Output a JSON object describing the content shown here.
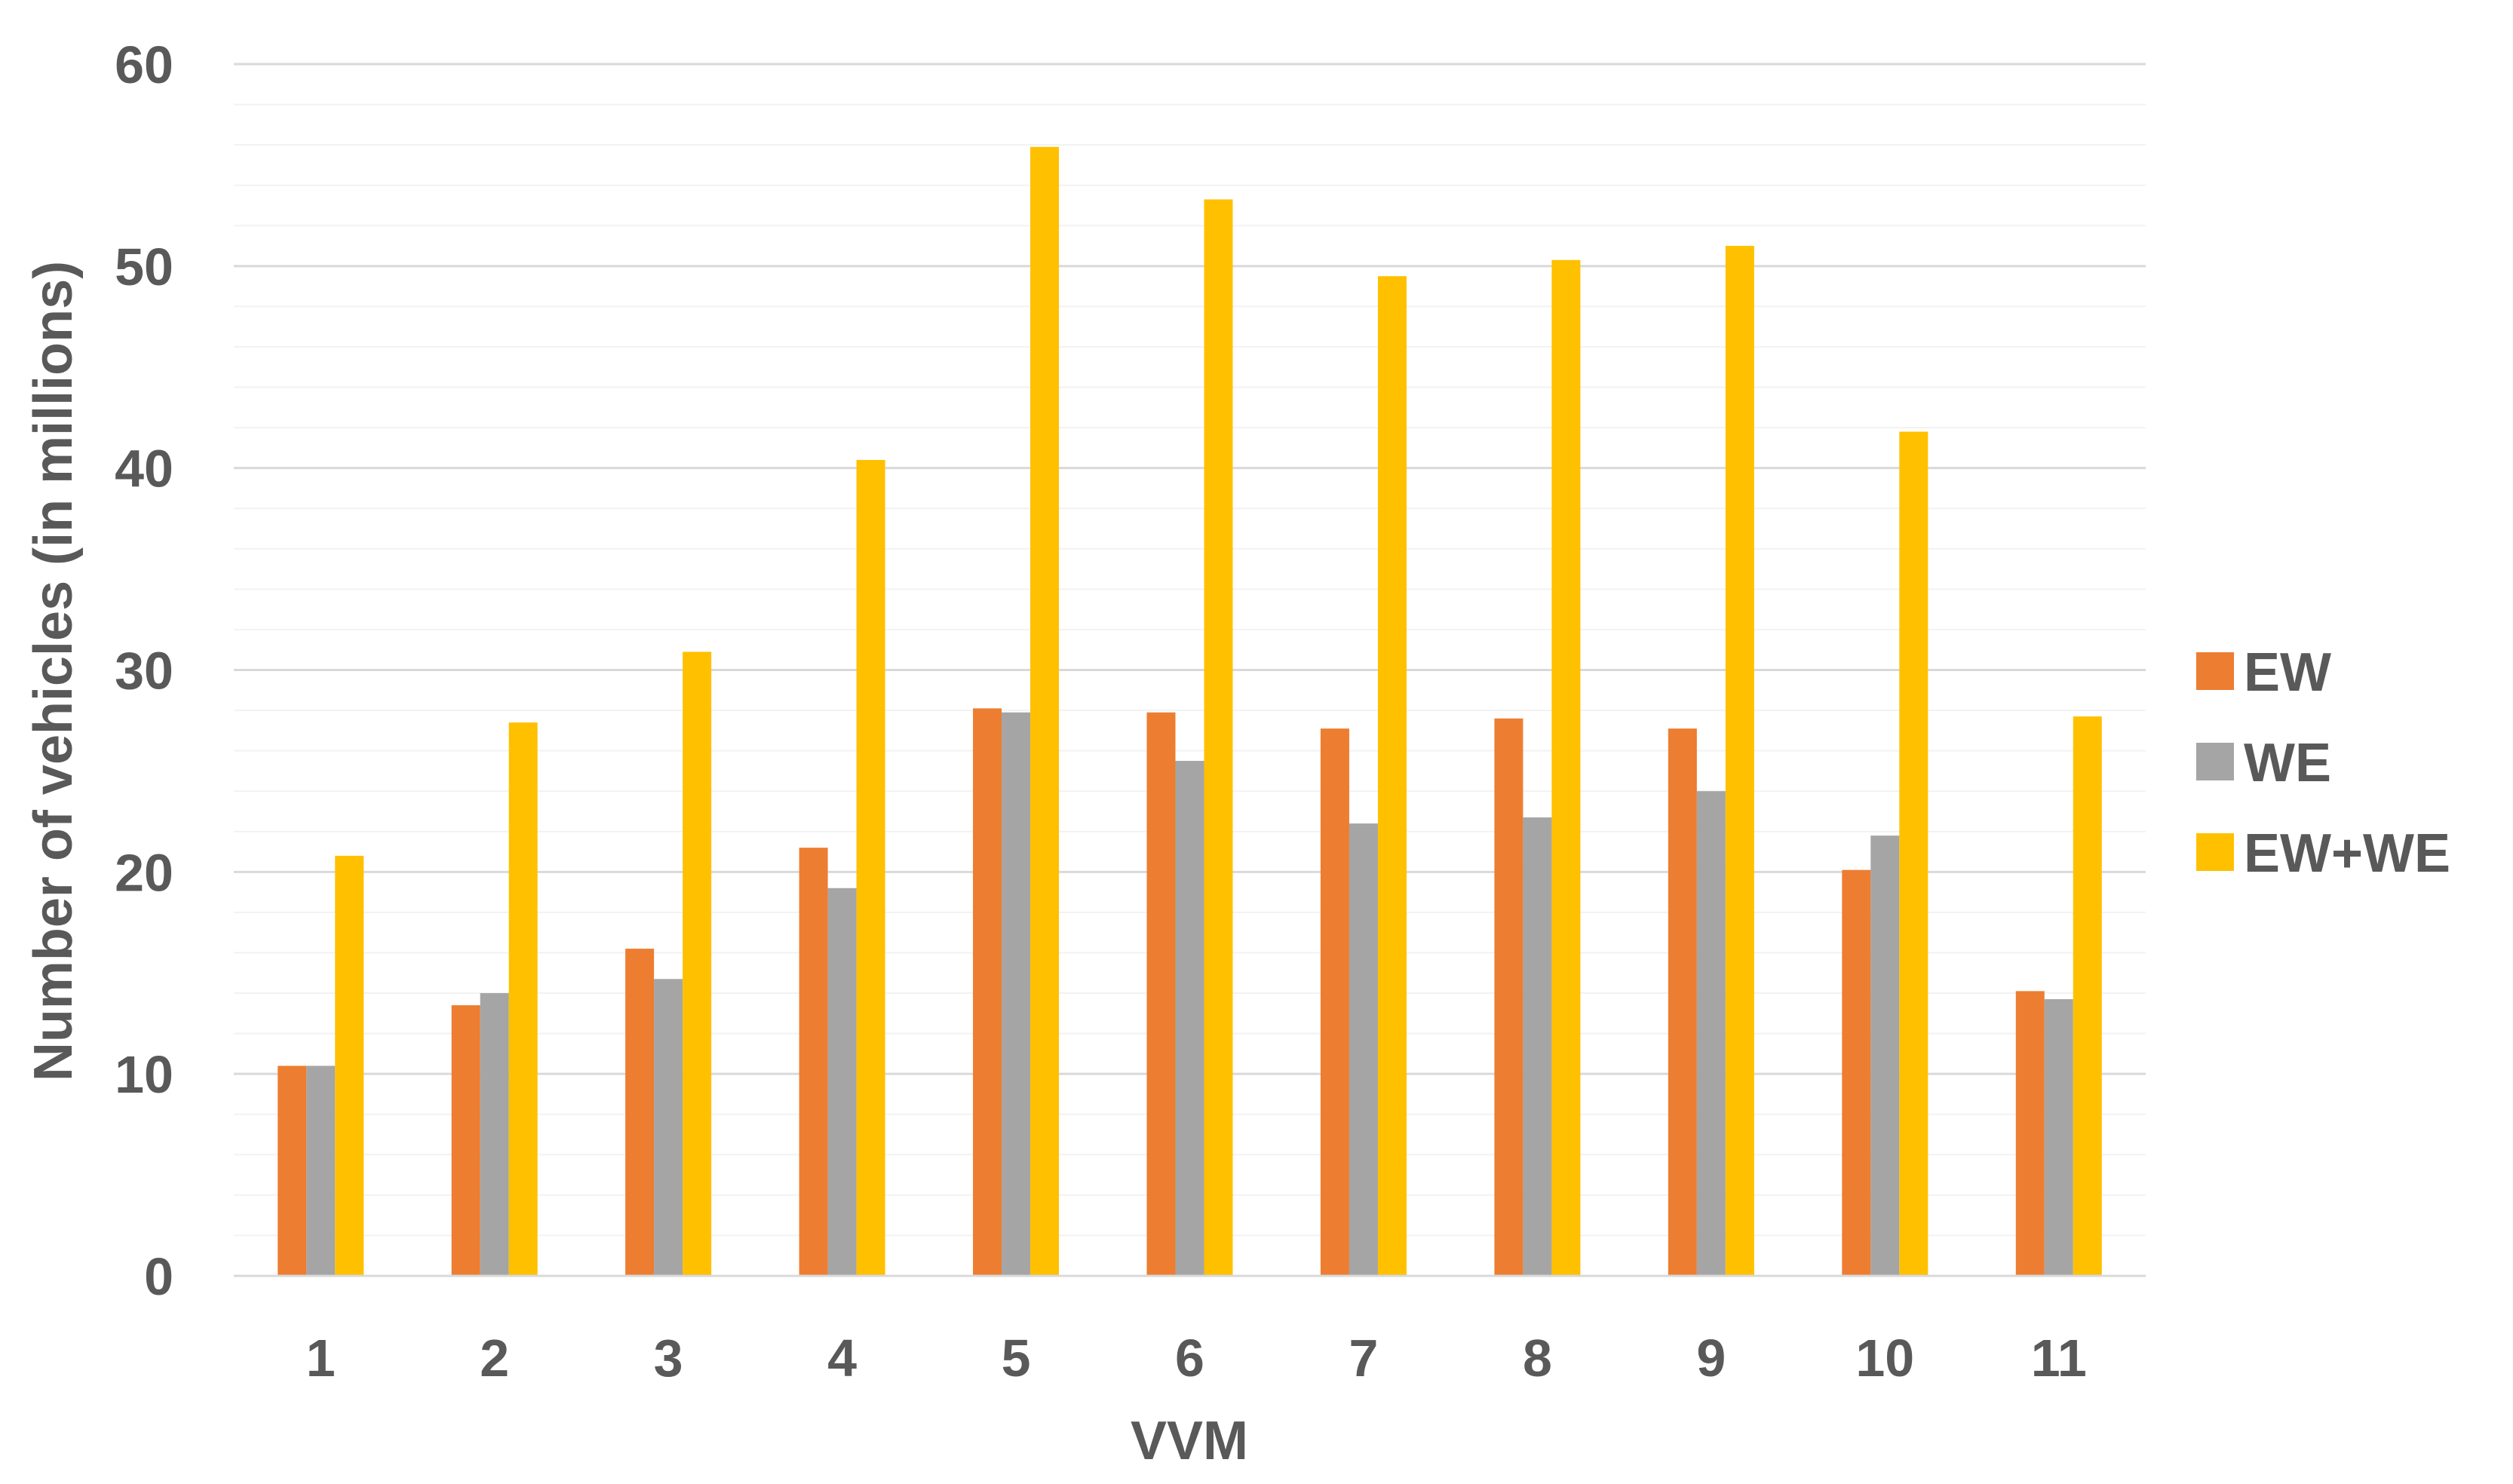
{
  "chart_data": {
    "type": "bar",
    "title": "",
    "xlabel": "VVM",
    "ylabel": "Number of vehicles (in millions)",
    "ylim": [
      0,
      60
    ],
    "yticks": [
      0,
      10,
      20,
      30,
      40,
      50,
      60
    ],
    "categories": [
      "1",
      "2",
      "3",
      "4",
      "5",
      "6",
      "7",
      "8",
      "9",
      "10",
      "11"
    ],
    "series": [
      {
        "name": "EW",
        "color": "#ED7D31",
        "values": [
          10.4,
          13.4,
          16.2,
          21.2,
          28.1,
          27.9,
          27.1,
          27.6,
          27.1,
          20.1,
          14.1
        ]
      },
      {
        "name": "WE",
        "color": "#A5A5A5",
        "values": [
          10.4,
          14.0,
          14.7,
          19.2,
          27.9,
          25.5,
          22.4,
          22.7,
          24.0,
          21.8,
          13.7
        ]
      },
      {
        "name": "EW+WE",
        "color": "#FFC000",
        "values": [
          20.8,
          27.4,
          30.9,
          40.4,
          55.9,
          53.3,
          49.5,
          50.3,
          51.0,
          41.8,
          27.7
        ]
      }
    ],
    "grid": true,
    "legend_position": "right"
  }
}
